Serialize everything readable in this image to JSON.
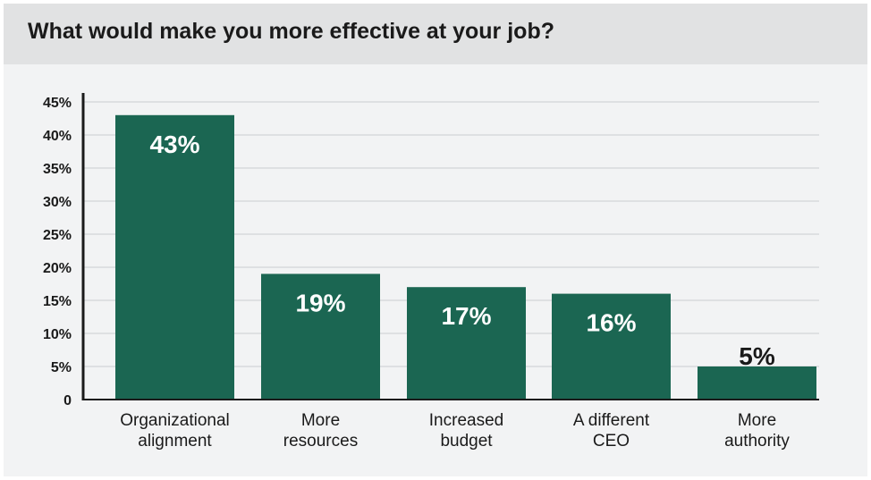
{
  "chart_data": {
    "type": "bar",
    "title": "What would make you more effective at your job?",
    "categories": [
      [
        "Organizational",
        "alignment"
      ],
      [
        "More",
        "resources"
      ],
      [
        "Increased",
        "budget"
      ],
      [
        "A different",
        "CEO"
      ],
      [
        "More",
        "authority"
      ]
    ],
    "values": [
      43,
      19,
      17,
      16,
      5
    ],
    "data_labels": [
      "43%",
      "19%",
      "17%",
      "16%",
      "5%"
    ],
    "yticks": [
      "0",
      "5%",
      "10%",
      "15%",
      "20%",
      "25%",
      "30%",
      "35%",
      "40%",
      "45%"
    ],
    "ylim": [
      0,
      45
    ],
    "grid": true,
    "bar_color": "#1b6652",
    "label_color_inside": "#ffffff",
    "label_color_outside": "#1a1a1a"
  }
}
